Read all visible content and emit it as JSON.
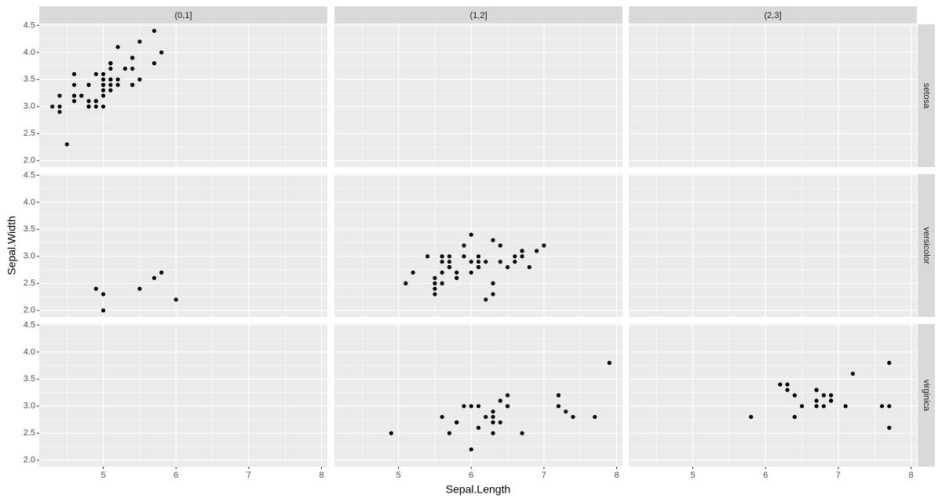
{
  "chart_data": {
    "type": "scatter",
    "x_label": "Sepal.Length",
    "y_label": "Sepal.Width",
    "columns": [
      "(0,1]",
      "(1,2]",
      "(2,3]"
    ],
    "rows": [
      "setosa",
      "versicolor",
      "virginica"
    ],
    "xlim": [
      4.12,
      8.08
    ],
    "ylim": [
      1.88,
      4.52
    ],
    "xticks": [
      5,
      6,
      7,
      8
    ],
    "yticks": [
      {
        "value": 2,
        "label": "2.0"
      },
      2.5,
      {
        "value": 3,
        "label": "3.0"
      },
      3.5,
      {
        "value": 4,
        "label": "4.0"
      },
      4.5
    ],
    "grid": true,
    "color": "#000000",
    "panels": [
      [
        {
          "x": [
            5.1,
            4.9,
            4.7,
            4.6,
            5.0,
            5.4,
            4.6,
            5.0,
            4.4,
            4.9,
            5.4,
            4.8,
            4.8,
            4.3,
            5.8,
            5.7,
            5.4,
            5.1,
            5.7,
            5.1,
            5.4,
            5.1,
            4.6,
            5.1,
            4.8,
            5.0,
            5.0,
            5.2,
            5.2,
            4.7,
            4.8,
            5.4,
            5.2,
            5.5,
            4.9,
            5.0,
            5.5,
            4.9,
            4.4,
            5.1,
            5.0,
            4.5,
            4.4,
            5.0,
            5.1,
            4.8,
            5.1,
            4.6,
            5.3,
            5.0
          ],
          "y": [
            3.5,
            3.0,
            3.2,
            3.1,
            3.6,
            3.9,
            3.4,
            3.4,
            2.9,
            3.1,
            3.7,
            3.4,
            3.0,
            3.0,
            4.0,
            4.4,
            3.9,
            3.5,
            3.8,
            3.8,
            3.4,
            3.7,
            3.6,
            3.3,
            3.4,
            3.0,
            3.4,
            3.5,
            3.4,
            3.2,
            3.1,
            3.4,
            4.1,
            4.2,
            3.1,
            3.2,
            3.5,
            3.6,
            3.0,
            3.4,
            3.5,
            2.3,
            3.2,
            3.5,
            3.8,
            3.0,
            3.8,
            3.2,
            3.7,
            3.3
          ]
        },
        {
          "x": [],
          "y": []
        },
        {
          "x": [],
          "y": []
        }
      ],
      [
        {
          "x": [
            4.9,
            5.0,
            6.0,
            5.8,
            5.7,
            5.5,
            5.0
          ],
          "y": [
            2.4,
            2.0,
            2.2,
            2.7,
            2.6,
            2.4,
            2.3
          ]
        },
        {
          "x": [
            7.0,
            6.4,
            6.9,
            5.5,
            6.5,
            5.7,
            6.3,
            6.6,
            5.2,
            5.9,
            6.1,
            5.6,
            6.7,
            5.6,
            6.2,
            5.6,
            5.9,
            6.1,
            6.3,
            6.1,
            6.4,
            6.6,
            6.8,
            6.7,
            6.0,
            5.5,
            5.8,
            6.0,
            5.4,
            6.0,
            6.7,
            6.3,
            5.6,
            5.5,
            5.5,
            6.1,
            5.8,
            5.6,
            5.7,
            5.7,
            6.2,
            5.1,
            5.7
          ],
          "y": [
            3.2,
            3.2,
            3.1,
            2.3,
            2.8,
            2.8,
            3.3,
            2.9,
            2.7,
            3.0,
            2.9,
            2.9,
            3.1,
            3.0,
            2.2,
            2.5,
            3.2,
            2.8,
            2.5,
            2.8,
            2.9,
            3.0,
            2.8,
            3.0,
            2.9,
            2.4,
            2.7,
            2.7,
            3.0,
            3.4,
            3.1,
            2.3,
            3.0,
            2.5,
            2.6,
            3.0,
            2.6,
            2.7,
            3.0,
            2.9,
            2.9,
            2.5,
            2.8
          ]
        },
        {
          "x": [],
          "y": []
        }
      ],
      [
        {
          "x": [],
          "y": []
        },
        {
          "x": [
            5.8,
            6.3,
            4.9,
            7.3,
            6.7,
            6.5,
            6.4,
            5.7,
            6.5,
            6.0,
            5.6,
            7.7,
            6.3,
            7.2,
            6.2,
            6.1,
            7.2,
            7.4,
            7.9,
            6.3,
            6.1,
            6.4,
            6.0,
            5.8,
            6.3,
            6.5,
            5.9
          ],
          "y": [
            2.7,
            2.9,
            2.5,
            2.9,
            2.5,
            3.2,
            2.7,
            2.5,
            3.0,
            2.2,
            2.8,
            2.8,
            2.7,
            3.2,
            2.8,
            3.0,
            3.0,
            2.8,
            3.8,
            2.8,
            2.6,
            3.1,
            3.0,
            2.7,
            2.5,
            3.0,
            3.0
          ]
        },
        {
          "x": [
            6.3,
            7.1,
            6.5,
            7.6,
            7.2,
            6.8,
            5.8,
            6.4,
            7.7,
            7.7,
            6.9,
            6.7,
            6.4,
            6.4,
            7.7,
            6.3,
            6.9,
            6.7,
            6.9,
            6.8,
            6.7,
            6.7,
            6.2
          ],
          "y": [
            3.3,
            3.0,
            3.0,
            3.0,
            3.6,
            3.0,
            2.8,
            3.2,
            3.8,
            2.6,
            3.2,
            3.3,
            2.8,
            2.8,
            3.0,
            3.4,
            3.1,
            3.1,
            3.1,
            3.2,
            3.3,
            3.0,
            3.4
          ]
        }
      ]
    ]
  }
}
